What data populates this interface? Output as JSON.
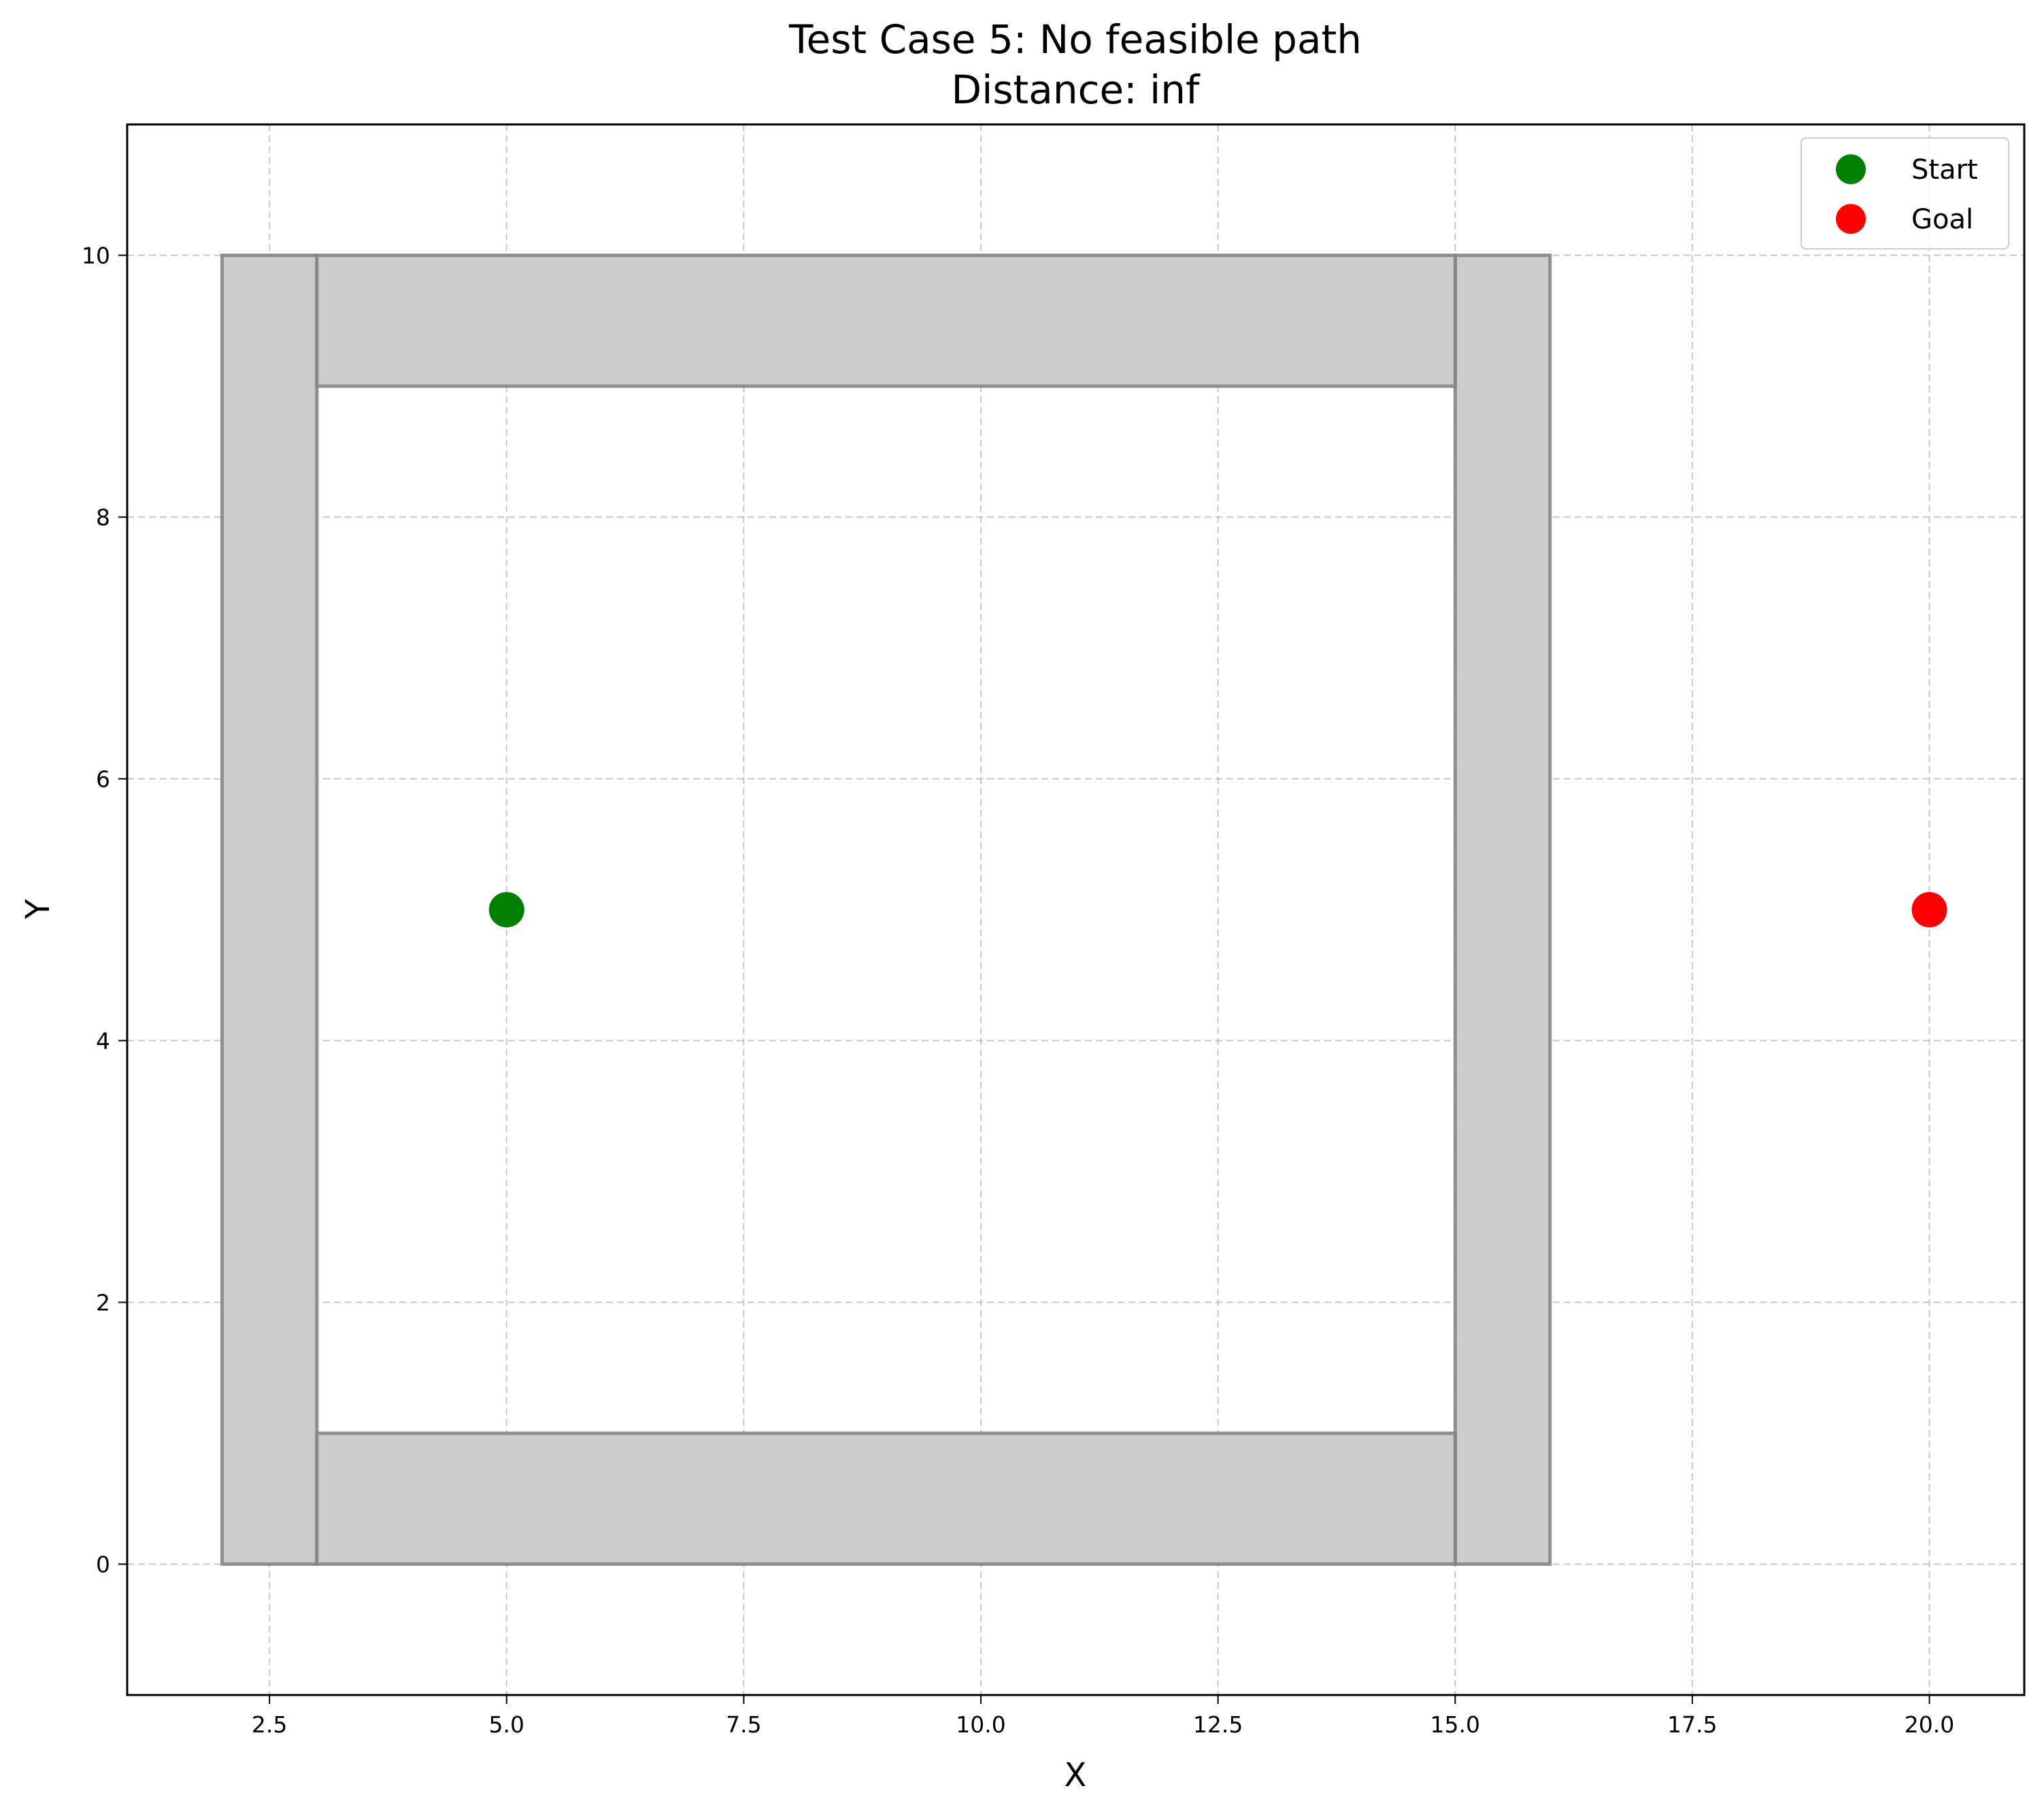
{
  "chart_data": {
    "type": "scatter",
    "title": "Test Case 5: No feasible path",
    "subtitle": "Distance: inf",
    "xlabel": "X",
    "ylabel": "Y",
    "xlim": [
      1,
      21
    ],
    "ylim": [
      -1,
      11
    ],
    "xticks": [
      2.5,
      5.0,
      7.5,
      10.0,
      12.5,
      15.0,
      17.5,
      20.0
    ],
    "xtick_labels": [
      "2.5",
      "5.0",
      "7.5",
      "10.0",
      "12.5",
      "15.0",
      "17.5",
      "20.0"
    ],
    "yticks": [
      0,
      2,
      4,
      6,
      8,
      10
    ],
    "ytick_labels": [
      "0",
      "2",
      "4",
      "6",
      "8",
      "10"
    ],
    "grid": true,
    "legend_position": "top-right",
    "obstacles": [
      {
        "x": 2,
        "y": 0,
        "width": 1,
        "height": 10
      },
      {
        "x": 15,
        "y": 0,
        "width": 1,
        "height": 10
      },
      {
        "x": 3,
        "y": 9,
        "width": 12,
        "height": 1
      },
      {
        "x": 3,
        "y": 0,
        "width": 12,
        "height": 1
      }
    ],
    "obstacle_fill": "#cccccc",
    "obstacle_edge": "#808080",
    "series": [
      {
        "name": "Start",
        "x": [
          5
        ],
        "y": [
          5
        ],
        "color": "#008000"
      },
      {
        "name": "Goal",
        "x": [
          20
        ],
        "y": [
          5
        ],
        "color": "#ff0000"
      }
    ]
  }
}
